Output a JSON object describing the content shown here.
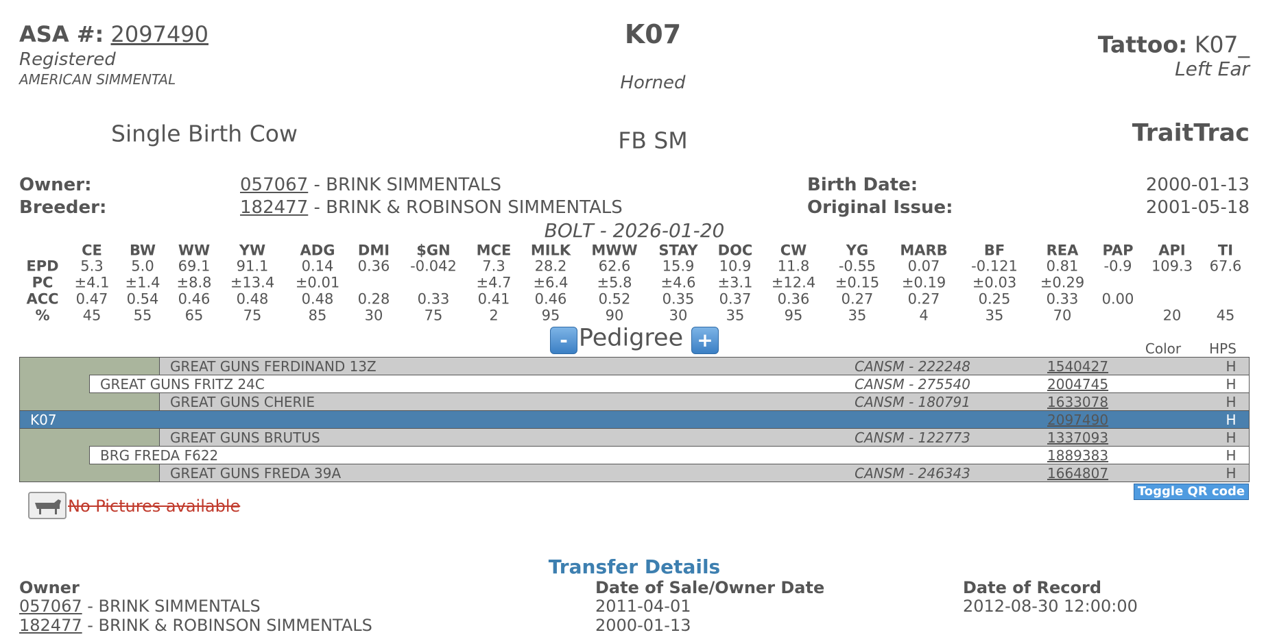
{
  "header": {
    "asa_label": "ASA #:",
    "asa_number": "2097490",
    "status": "Registered",
    "breed": "AMERICAN SIMMENTAL",
    "name": "K07",
    "horned": "Horned",
    "tattoo_label": "Tattoo:",
    "tattoo": "K07_",
    "tattoo_location": "Left Ear",
    "birth_type": "Single Birth Cow",
    "breed_code": "FB SM",
    "program": "TraitTrac"
  },
  "info": {
    "owner_label": "Owner:",
    "owner_id": "057067",
    "owner_name": "- BRINK SIMMENTALS",
    "breeder_label": "Breeder:",
    "breeder_id": "182477",
    "breeder_name": "- BRINK & ROBINSON SIMMENTALS",
    "birth_date_label": "Birth Date:",
    "birth_date": "2000-01-13",
    "original_issue_label": "Original Issue:",
    "original_issue": "2001-05-18"
  },
  "epd": {
    "title": "BOLT - 2026-01-20",
    "columns": [
      "CE",
      "BW",
      "WW",
      "YW",
      "ADG",
      "DMI",
      "$GN",
      "MCE",
      "MILK",
      "MWW",
      "STAY",
      "DOC",
      "CW",
      "YG",
      "MARB",
      "BF",
      "REA",
      "PAP",
      "API",
      "TI"
    ],
    "rows": [
      {
        "label": "EPD",
        "cells": [
          "5.3",
          "5.0",
          "69.1",
          "91.1",
          "0.14",
          "0.36",
          "-0.042",
          "7.3",
          "28.2",
          "62.6",
          "15.9",
          "10.9",
          "11.8",
          "-0.55",
          "0.07",
          "-0.121",
          "0.81",
          "-0.9",
          "109.3",
          "67.6"
        ]
      },
      {
        "label": "PC",
        "cells": [
          "±4.1",
          "±1.4",
          "±8.8",
          "±13.4",
          "±0.01",
          null,
          null,
          "±4.7",
          "±6.4",
          "±5.8",
          "±4.6",
          "±3.1",
          "±12.4",
          "±0.15",
          "±0.19",
          "±0.03",
          "±0.29",
          null,
          null,
          null
        ]
      },
      {
        "label": "ACC",
        "cells": [
          "0.47",
          "0.54",
          "0.46",
          "0.48",
          "0.48",
          "0.28",
          "0.33",
          "0.41",
          "0.46",
          "0.52",
          "0.35",
          "0.37",
          "0.36",
          "0.27",
          "0.27",
          "0.25",
          "0.33",
          "0.00",
          null,
          null
        ]
      },
      {
        "label": "%",
        "cells": [
          "45",
          "55",
          "65",
          "75",
          "85",
          "30",
          "75",
          "2",
          "95",
          "90",
          "30",
          "35",
          "95",
          "35",
          "4",
          "35",
          "70",
          null,
          "20",
          "45"
        ]
      }
    ]
  },
  "pedigree": {
    "minus": "-",
    "title": "Pedigree",
    "plus": "+",
    "color_header": "Color",
    "hps_header": "HPS",
    "rows": [
      {
        "name": "GREAT GUNS FERDINAND 13Z",
        "generation": 2,
        "registration": "CANSM - 222248",
        "number": "1540427",
        "hps": "H"
      },
      {
        "name": "GREAT GUNS FRITZ 24C",
        "generation": 1,
        "registration": "CANSM - 275540",
        "number": "2004745",
        "hps": "H"
      },
      {
        "name": "GREAT GUNS CHERIE",
        "generation": 2,
        "registration": "CANSM - 180791",
        "number": "1633078",
        "hps": "H"
      },
      {
        "name": "K07",
        "generation": 0,
        "registration": null,
        "number": "2097490",
        "hps": "H"
      },
      {
        "name": "GREAT GUNS BRUTUS",
        "generation": 2,
        "registration": "CANSM - 122773",
        "number": "1337093",
        "hps": "H"
      },
      {
        "name": "BRG FREDA F622",
        "generation": 1,
        "registration": null,
        "number": "1889383",
        "hps": "H"
      },
      {
        "name": "GREAT GUNS FREDA 39A",
        "generation": 2,
        "registration": "CANSM - 246343",
        "number": "1664807",
        "hps": "H"
      }
    ],
    "toggle_qr": "Toggle QR code",
    "no_pictures": "No Pictures available"
  },
  "transfer": {
    "title": "Transfer Details",
    "headers": [
      "Owner",
      "Date of Sale/Owner Date",
      "Date of Record"
    ],
    "rows": [
      {
        "owner_id": "057067",
        "owner_name": "- BRINK SIMMENTALS",
        "date_of_sale": "2011-04-01",
        "date_of_record": "2012-08-30 12:00:00"
      },
      {
        "owner_id": "182477",
        "owner_name": "- BRINK & ROBINSON SIMMENTALS",
        "date_of_sale": "2000-01-13",
        "date_of_record": null
      }
    ]
  }
}
